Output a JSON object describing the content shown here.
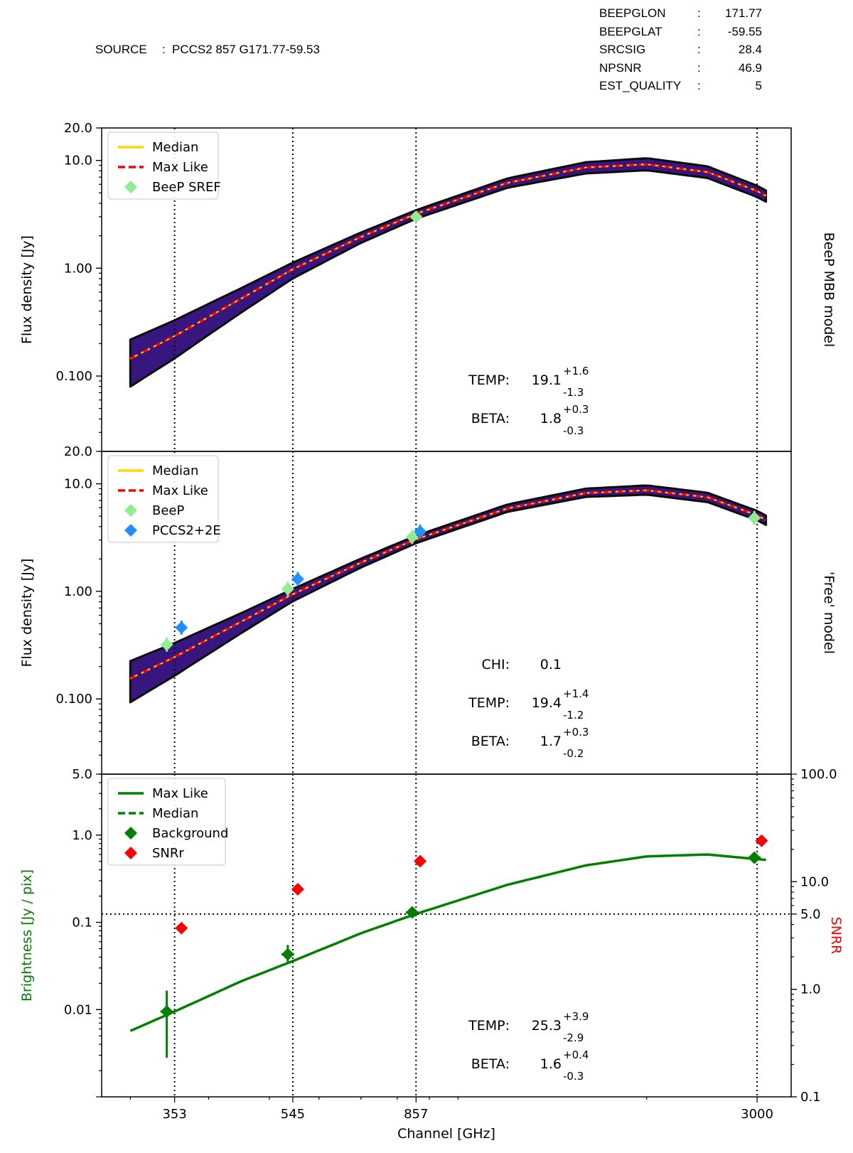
{
  "header": {
    "source_label": "SOURCE",
    "source_sep": ":",
    "source_value": "PCCS2 857 G171.77-59.53",
    "fields": [
      {
        "key": "BEEPGLON",
        "sep": ":",
        "value": "171.77"
      },
      {
        "key": "BEEPGLAT",
        "sep": ":",
        "value": "-59.55"
      },
      {
        "key": "SRCSIG",
        "sep": ":",
        "value": "28.4"
      },
      {
        "key": "NPSNR",
        "sep": ":",
        "value": "46.9"
      },
      {
        "key": "EST_QUALITY",
        "sep": ":",
        "value": "5"
      }
    ]
  },
  "colors": {
    "median": "#ffd700",
    "max_like": "#ff0000",
    "beep": "#90ee90",
    "pccs": "#1e90ff",
    "background": "#008000",
    "snr": "#ff0000",
    "band": "#2d0a7a",
    "band_edge": "#000000"
  },
  "chart_data": [
    {
      "type": "line",
      "panel": "top",
      "side_label": "BeeP MBB model",
      "ylabel": "Flux density  [Jy]",
      "yscale": "log",
      "ylim": [
        0.02,
        20.0
      ],
      "yticks": [
        "20.0",
        "10.0",
        "1.00",
        "0.100"
      ],
      "legend": [
        "Median",
        "Max Like",
        "BeeP SREF"
      ],
      "legend_loc": "upper left",
      "curve": {
        "x": [
          300,
          353,
          450,
          545,
          700,
          857,
          1200,
          1600,
          2000,
          2500,
          3000,
          3100
        ],
        "y": [
          0.145,
          0.235,
          0.52,
          0.98,
          1.95,
          3.2,
          6.2,
          8.6,
          9.2,
          7.8,
          5.2,
          4.7
        ],
        "band_low_factor": [
          0.55,
          0.62,
          0.74,
          0.82,
          0.88,
          0.9,
          0.9,
          0.88,
          0.88,
          0.88,
          0.88,
          0.88
        ],
        "band_high_factor": [
          1.5,
          1.4,
          1.25,
          1.15,
          1.1,
          1.08,
          1.1,
          1.12,
          1.14,
          1.13,
          1.12,
          1.12
        ]
      },
      "points": [
        {
          "series": "BeeP SREF",
          "x": 857,
          "y": 3.0
        }
      ],
      "stats": [
        {
          "label": "TEMP:",
          "value": "19.1",
          "plus": "+1.6",
          "minus": "-1.3"
        },
        {
          "label": "BETA:",
          "value": "1.8",
          "plus": "+0.3",
          "minus": "-0.3"
        }
      ]
    },
    {
      "type": "line",
      "panel": "middle",
      "side_label": "'Free' model",
      "ylabel": "Flux density  [Jy]",
      "yscale": "log",
      "ylim": [
        0.02,
        20.0
      ],
      "yticks": [
        "20.0",
        "10.0",
        "1.00",
        "0.100"
      ],
      "legend": [
        "Median",
        "Max Like",
        "BeeP",
        "PCCS2+2E"
      ],
      "legend_loc": "upper left",
      "curve": {
        "x": [
          300,
          353,
          450,
          545,
          700,
          857,
          1200,
          1600,
          2000,
          2500,
          3000,
          3100
        ],
        "y": [
          0.155,
          0.245,
          0.52,
          0.94,
          1.85,
          3.05,
          5.9,
          8.2,
          8.7,
          7.5,
          5.1,
          4.6
        ],
        "band_low_factor": [
          0.6,
          0.67,
          0.78,
          0.86,
          0.9,
          0.92,
          0.93,
          0.92,
          0.91,
          0.9,
          0.9,
          0.9
        ],
        "band_high_factor": [
          1.45,
          1.35,
          1.2,
          1.12,
          1.09,
          1.08,
          1.09,
          1.1,
          1.11,
          1.1,
          1.1,
          1.1
        ]
      },
      "points": [
        {
          "series": "BeeP",
          "x": 343,
          "y": 0.32
        },
        {
          "series": "BeeP",
          "x": 535,
          "y": 1.05
        },
        {
          "series": "BeeP",
          "x": 845,
          "y": 3.2
        },
        {
          "series": "BeeP",
          "x": 2970,
          "y": 4.8
        },
        {
          "series": "PCCS2+2E",
          "x": 362,
          "y": 0.46
        },
        {
          "series": "PCCS2+2E",
          "x": 555,
          "y": 1.3
        },
        {
          "series": "PCCS2+2E",
          "x": 870,
          "y": 3.6
        }
      ],
      "stats": [
        {
          "label": "CHI:",
          "value": "0.1",
          "plus": "",
          "minus": ""
        },
        {
          "label": "TEMP:",
          "value": "19.4",
          "plus": "+1.4",
          "minus": "-1.2"
        },
        {
          "label": "BETA:",
          "value": "1.7",
          "plus": "+0.3",
          "minus": "-0.2"
        }
      ]
    },
    {
      "type": "line",
      "panel": "bottom",
      "ylabel": "Brightness [Jy / pix]",
      "y2label": "SNRR",
      "xlabel": "Channel [GHz]",
      "yscale": "log",
      "ylim": [
        0.001,
        5.0
      ],
      "yticks": [
        "5.0",
        "1.0",
        "0.1",
        "0.01"
      ],
      "y2scale": "log",
      "y2lim": [
        0.1,
        100.0
      ],
      "y2ticks": [
        "100.0",
        "10.0",
        "5.0",
        "1.0",
        "0.1"
      ],
      "snr_threshold": 5.0,
      "xticks": [
        "353",
        "545",
        "857",
        "3000"
      ],
      "xlim": [
        270,
        3400
      ],
      "legend": [
        "Max Like",
        "Median",
        "Background",
        "SNRr"
      ],
      "legend_loc": "upper left",
      "curve": {
        "x": [
          300,
          353,
          450,
          545,
          700,
          857,
          1200,
          1600,
          2000,
          2500,
          3000,
          3100
        ],
        "y": [
          0.0057,
          0.0095,
          0.021,
          0.036,
          0.075,
          0.125,
          0.27,
          0.45,
          0.57,
          0.6,
          0.53,
          0.52
        ]
      },
      "background_points": [
        {
          "x": 343,
          "y": 0.0095,
          "err_low": 0.0028,
          "err_high": 0.0165
        },
        {
          "x": 535,
          "y": 0.043,
          "err_low": 0.035,
          "err_high": 0.055
        },
        {
          "x": 845,
          "y": 0.13,
          "err_low": 0.117,
          "err_high": 0.145
        },
        {
          "x": 2970,
          "y": 0.55,
          "err_low": 0.52,
          "err_high": 0.58
        }
      ],
      "snr_points": [
        {
          "x": 362,
          "y": 3.7
        },
        {
          "x": 555,
          "y": 8.5
        },
        {
          "x": 870,
          "y": 15.5
        },
        {
          "x": 3050,
          "y": 24.0
        }
      ],
      "stats": [
        {
          "label": "TEMP:",
          "value": "25.3",
          "plus": "+3.9",
          "minus": "-2.9"
        },
        {
          "label": "BETA:",
          "value": "1.6",
          "plus": "+0.4",
          "minus": "-0.3"
        }
      ]
    }
  ]
}
